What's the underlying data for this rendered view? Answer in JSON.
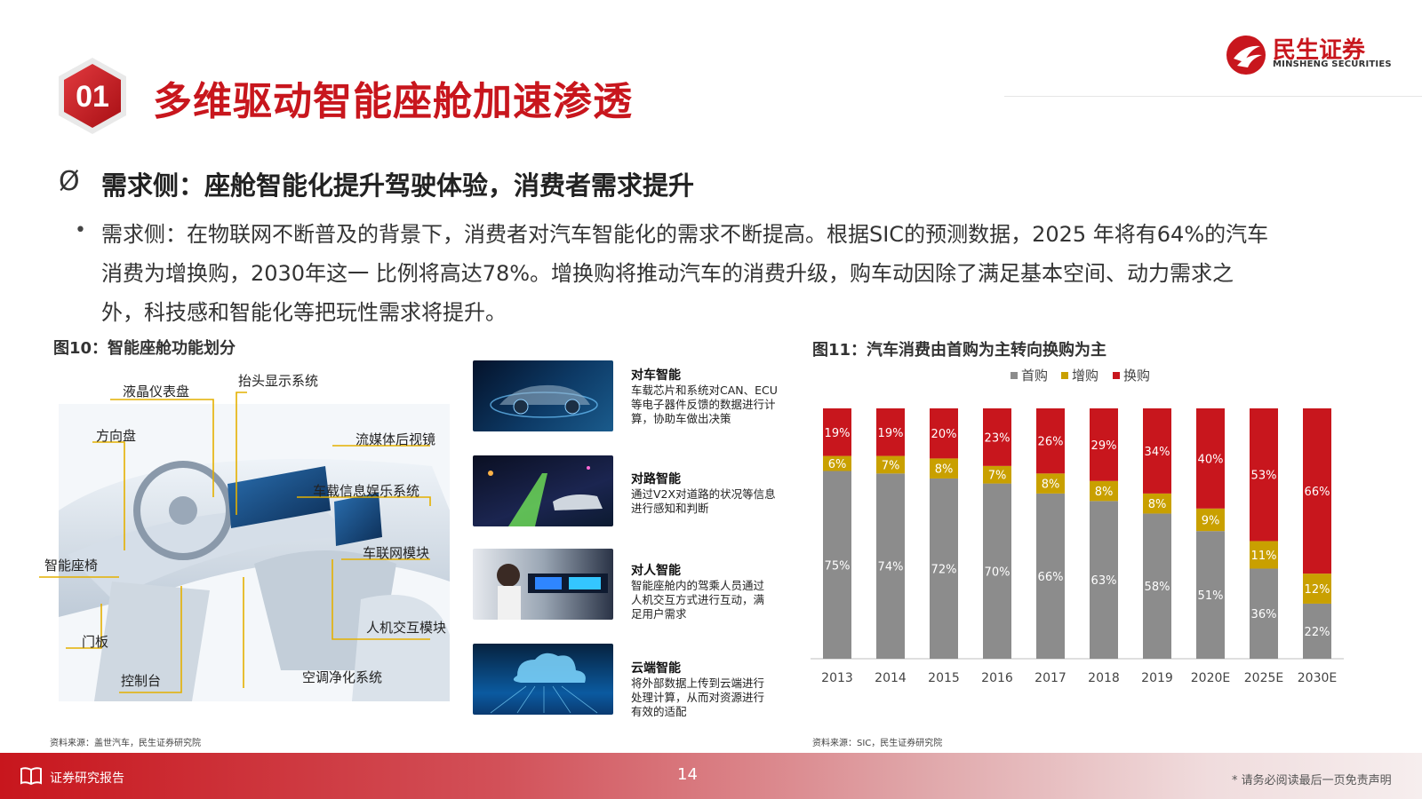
{
  "header": {
    "section_number": "01",
    "title": "多维驱动智能座舱加速渗透",
    "logo_cn": "民生证券",
    "logo_en": "MINSHENG SECURITIES"
  },
  "heading": {
    "arrow": "Ø",
    "text": "需求侧：座舱智能化提升驾驶体验，消费者需求提升"
  },
  "paragraph": {
    "bullet": "•",
    "lines": [
      "需求侧：在物联网不断普及的背景下，消费者对汽车智能化的需求不断提高。根据SIC的预测数据，2025 年将有64%的汽车",
      "消费为增换购，2030年这一 比例将高达78%。增换购将推动汽车的消费升级，购车动因除了满足基本空间、动力需求之",
      "外，科技感和智能化等把玩性需求将提升。"
    ]
  },
  "figure10": {
    "caption": "图10：智能座舱功能划分",
    "source": "资料来源：盖世汽车，民生证券研究院",
    "labels": [
      "液晶仪表盘",
      "抬头显示系统",
      "方向盘",
      "流媒体后视镜",
      "车载信息娱乐系统",
      "车联网模块",
      "智能座椅",
      "人机交互模块",
      "门板",
      "空调净化系统",
      "控制台"
    ],
    "features": [
      {
        "title": "对车智能",
        "desc": [
          "车载芯片和系统对CAN、ECU",
          "等电子器件反馈的数据进行计",
          "算，协助车做出决策"
        ]
      },
      {
        "title": "对路智能",
        "desc": [
          "通过V2X对道路的状况等信息",
          "进行感知和判断"
        ]
      },
      {
        "title": "对人智能",
        "desc": [
          "智能座舱内的驾乘人员通过",
          "人机交互方式进行互动，满",
          "足用户需求"
        ]
      },
      {
        "title": "云端智能",
        "desc": [
          "将外部数据上传到云端进行",
          "处理计算，从而对资源进行",
          "有效的适配"
        ]
      }
    ]
  },
  "figure11": {
    "caption": "图11：汽车消费由首购为主转向换购为主",
    "source": "资料来源：SIC，民生证券研究院"
  },
  "chart_data": {
    "type": "bar",
    "stacked": true,
    "percent": true,
    "categories": [
      "2013",
      "2014",
      "2015",
      "2016",
      "2017",
      "2018",
      "2019",
      "2020E",
      "2025E",
      "2030E"
    ],
    "series": [
      {
        "name": "首购",
        "color": "#8c8c8c",
        "values": [
          75,
          74,
          72,
          70,
          66,
          63,
          58,
          51,
          36,
          22
        ]
      },
      {
        "name": "增购",
        "color": "#c9a000",
        "values": [
          6,
          7,
          8,
          7,
          8,
          8,
          8,
          9,
          11,
          12
        ]
      },
      {
        "name": "换购",
        "color": "#c8161d",
        "values": [
          19,
          19,
          20,
          23,
          26,
          29,
          34,
          40,
          53,
          66
        ]
      }
    ],
    "ylim": [
      0,
      100
    ],
    "legend_position": "top",
    "grid": false
  },
  "footer": {
    "label": "证券研究报告",
    "page_number": "14",
    "disclaimer": "* 请务必阅读最后一页免责声明"
  },
  "colors": {
    "brand_red": "#c8161d",
    "gold": "#c9a000",
    "gray": "#8c8c8c"
  },
  "icons": {
    "footer": "book-icon",
    "logo": "minsheng-logo-icon"
  }
}
